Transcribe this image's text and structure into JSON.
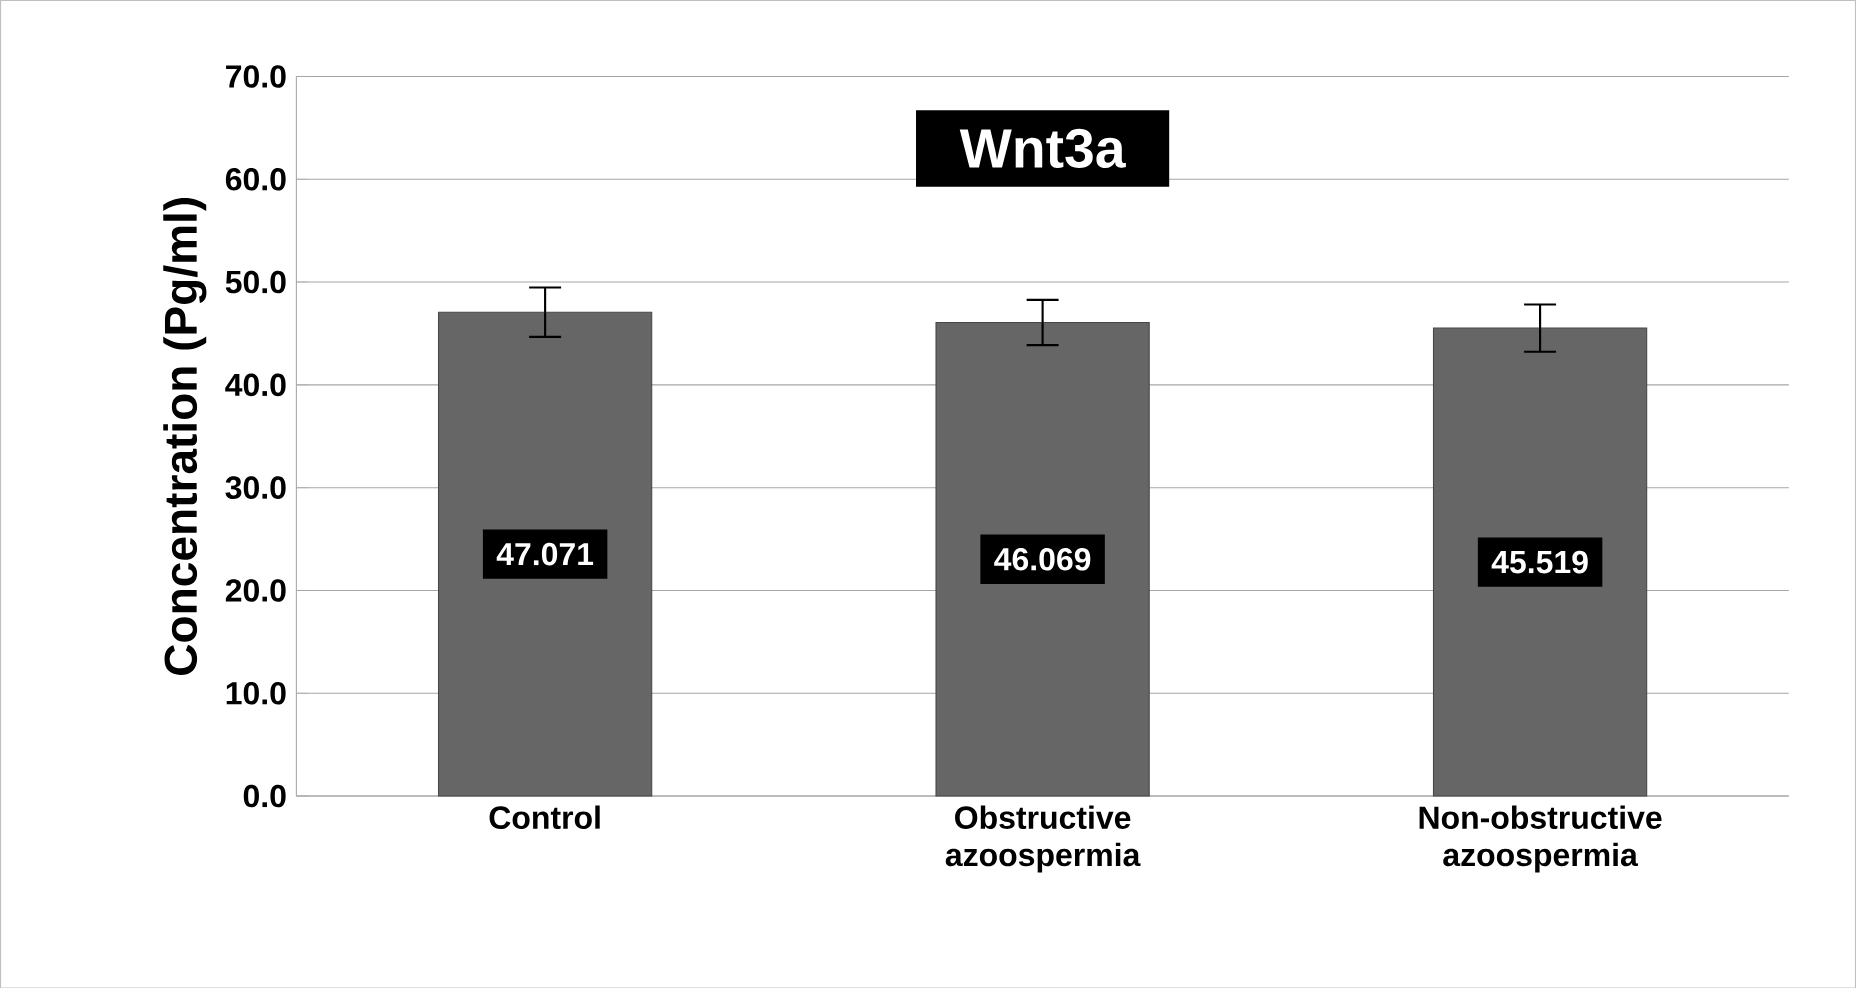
{
  "chart_data": {
    "type": "bar",
    "title": "Wnt3a",
    "ylabel": "Concentration  (Pg/ml)",
    "categories": [
      "Control",
      "Obstructive azoospermia",
      "Non-obstructive azoospermia"
    ],
    "values": [
      47.071,
      46.069,
      45.519
    ],
    "errors": [
      2.4,
      2.2,
      2.3
    ],
    "color": "#666666",
    "ylim": [
      0,
      70
    ],
    "yticks": [
      {
        "value": 0,
        "label": "0.0"
      },
      {
        "value": 10,
        "label": "10.0"
      },
      {
        "value": 20,
        "label": "20.0"
      },
      {
        "value": 30,
        "label": "30.0"
      },
      {
        "value": 40,
        "label": "40.0"
      },
      {
        "value": 50,
        "label": "50.0"
      },
      {
        "value": 60,
        "label": "60.0"
      },
      {
        "value": 70,
        "label": "70.0"
      }
    ],
    "grid": "y",
    "data_labels": true
  }
}
